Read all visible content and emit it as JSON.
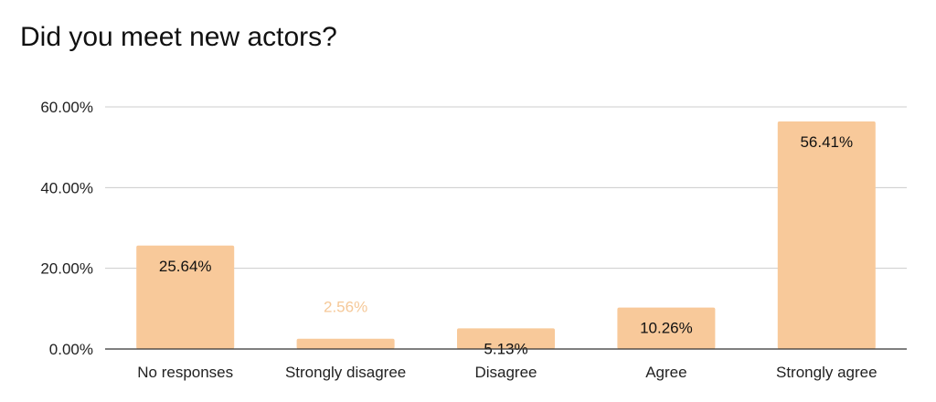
{
  "chart_data": {
    "type": "bar",
    "title": "Did you meet new actors?",
    "xlabel": "",
    "ylabel": "",
    "categories": [
      "No responses",
      "Strongly disagree",
      "Disagree",
      "Agree",
      "Strongly agree"
    ],
    "values": [
      25.64,
      2.56,
      5.13,
      10.26,
      56.41
    ],
    "data_labels": [
      "25.64%",
      "2.56%",
      "5.13%",
      "10.26%",
      "56.41%"
    ],
    "ylim": [
      0,
      60
    ],
    "yticks": [
      0,
      20,
      40,
      60
    ],
    "ytick_labels": [
      "0.00%",
      "20.00%",
      "40.00%",
      "60.00%"
    ],
    "grid": true,
    "legend": "none",
    "colors": {
      "bar": "#f8c99a",
      "label_inside": "#111111",
      "label_outside": "#f5c898",
      "grid": "#cccccc",
      "axis": "#333333"
    }
  }
}
